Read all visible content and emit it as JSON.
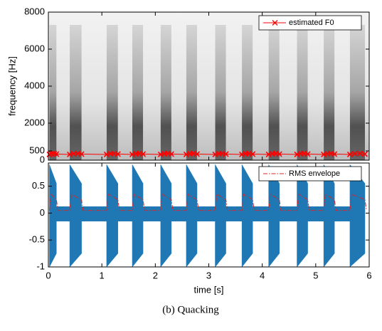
{
  "caption": "(b) Quacking",
  "chart_data": [
    {
      "type": "spectrogram",
      "ylabel": "frequency [Hz]",
      "xlim": [
        0,
        6
      ],
      "xticks": [
        0,
        1,
        2,
        3,
        4,
        5,
        6
      ],
      "ylim": [
        0,
        8000
      ],
      "yticks": [
        0,
        500,
        2000,
        4000,
        6000,
        8000
      ],
      "legend": "upper right",
      "series": [
        {
          "name": "estimated F0",
          "color": "#ff0000",
          "x": [
            0.02,
            0.06,
            0.11,
            0.15,
            0.4,
            0.47,
            0.55,
            0.62,
            1.09,
            1.16,
            1.23,
            1.3,
            1.57,
            1.64,
            1.7,
            1.77,
            2.1,
            2.17,
            2.23,
            2.3,
            2.58,
            2.65,
            2.71,
            2.78,
            3.12,
            3.19,
            3.25,
            3.32,
            3.62,
            3.69,
            3.75,
            3.82,
            4.12,
            4.19,
            4.25,
            4.32,
            4.65,
            4.72,
            4.78,
            4.85,
            5.15,
            5.22,
            5.28,
            5.35,
            5.64,
            5.73,
            5.83,
            5.92
          ],
          "values": [
            310,
            350,
            360,
            330,
            310,
            350,
            360,
            330,
            310,
            350,
            360,
            330,
            310,
            350,
            360,
            330,
            310,
            350,
            360,
            330,
            310,
            350,
            360,
            330,
            310,
            350,
            360,
            330,
            310,
            350,
            360,
            330,
            310,
            350,
            360,
            330,
            310,
            350,
            360,
            330,
            310,
            350,
            360,
            330,
            310,
            350,
            360,
            330
          ]
        }
      ]
    },
    {
      "type": "waveform",
      "xlabel": "time [s]",
      "xlim": [
        0,
        6
      ],
      "xticks": [
        0,
        1,
        2,
        3,
        4,
        5,
        6
      ],
      "ylim": [
        -1,
        0.93
      ],
      "yticks": [
        0.5,
        0,
        -0.5,
        -1
      ],
      "legend": "upper right",
      "waveform": {
        "color": "#1f77b4",
        "x": [
          0.02,
          0.02,
          0.15,
          0.15,
          0.4,
          0.4,
          0.62,
          0.62,
          1.09,
          1.09,
          1.3,
          1.3,
          1.57,
          1.57,
          1.77,
          1.77,
          2.1,
          2.1,
          2.3,
          2.3,
          2.58,
          2.58,
          2.78,
          2.78,
          3.12,
          3.12,
          3.32,
          3.32,
          3.62,
          3.62,
          3.82,
          3.82,
          4.12,
          4.12,
          4.32,
          4.32,
          4.65,
          4.65,
          4.85,
          4.85,
          5.15,
          5.15,
          5.35,
          5.35,
          5.64,
          5.64,
          5.92,
          5.92
        ],
        "max": [
          0.12,
          0.9,
          0.55,
          0.12,
          0.12,
          0.9,
          0.55,
          0.12,
          0.12,
          0.9,
          0.55,
          0.12,
          0.12,
          0.9,
          0.55,
          0.12,
          0.12,
          0.9,
          0.55,
          0.12,
          0.12,
          0.9,
          0.55,
          0.12,
          0.12,
          0.9,
          0.55,
          0.12,
          0.12,
          0.9,
          0.55,
          0.12,
          0.12,
          0.9,
          0.55,
          0.12,
          0.12,
          0.9,
          0.55,
          0.12,
          0.12,
          0.9,
          0.55,
          0.12,
          0.12,
          0.9,
          0.55,
          0.12
        ],
        "min": [
          -0.15,
          -1,
          -0.75,
          -0.15,
          -0.15,
          -1,
          -0.75,
          -0.15,
          -0.15,
          -1,
          -0.75,
          -0.15,
          -0.15,
          -1,
          -0.75,
          -0.15,
          -0.15,
          -1,
          -0.75,
          -0.15,
          -0.15,
          -1,
          -0.75,
          -0.15,
          -0.15,
          -1,
          -0.75,
          -0.15,
          -0.15,
          -1,
          -0.75,
          -0.15,
          -0.15,
          -1,
          -0.75,
          -0.15,
          -0.15,
          -1,
          -0.75,
          -0.15,
          -0.15,
          -1,
          -0.75,
          -0.15,
          -0.15,
          -1,
          -0.75,
          -0.15
        ]
      },
      "series": [
        {
          "name": "RMS envelope",
          "color": "#d62728",
          "x": [
            0.02,
            0.05,
            0.15,
            0.18,
            0.4,
            0.43,
            0.62,
            0.65,
            1.09,
            1.12,
            1.3,
            1.33,
            1.57,
            1.6,
            1.77,
            1.8,
            2.1,
            2.13,
            2.3,
            2.33,
            2.58,
            2.61,
            2.78,
            2.81,
            3.12,
            3.15,
            3.32,
            3.35,
            3.62,
            3.65,
            3.82,
            3.85,
            4.12,
            4.15,
            4.32,
            4.35,
            4.65,
            4.68,
            4.85,
            4.88,
            5.15,
            5.18,
            5.35,
            5.38,
            5.64,
            5.67,
            5.92,
            5.95
          ],
          "values": [
            0.05,
            0.35,
            0.25,
            0.05,
            0.05,
            0.35,
            0.25,
            0.05,
            0.05,
            0.35,
            0.25,
            0.05,
            0.05,
            0.35,
            0.25,
            0.05,
            0.05,
            0.35,
            0.25,
            0.05,
            0.05,
            0.35,
            0.25,
            0.05,
            0.05,
            0.35,
            0.25,
            0.05,
            0.05,
            0.35,
            0.25,
            0.05,
            0.05,
            0.35,
            0.25,
            0.05,
            0.05,
            0.35,
            0.25,
            0.05,
            0.05,
            0.35,
            0.25,
            0.05,
            0.05,
            0.35,
            0.25,
            0.05
          ]
        }
      ]
    }
  ]
}
